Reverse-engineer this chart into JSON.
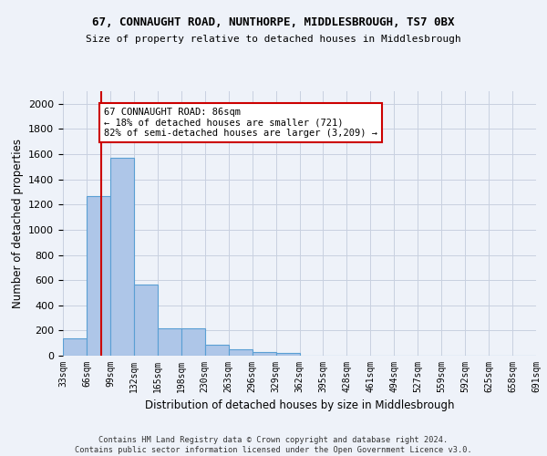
{
  "title": "67, CONNAUGHT ROAD, NUNTHORPE, MIDDLESBROUGH, TS7 0BX",
  "subtitle": "Size of property relative to detached houses in Middlesbrough",
  "xlabel": "Distribution of detached houses by size in Middlesbrough",
  "ylabel": "Number of detached properties",
  "bar_values": [
    140,
    1265,
    1570,
    565,
    220,
    220,
    90,
    50,
    30,
    20,
    0,
    0,
    0,
    0,
    0,
    0,
    0,
    0,
    0,
    0
  ],
  "bar_edges": [
    33,
    66,
    99,
    132,
    165,
    198,
    231,
    264,
    297,
    330,
    363,
    396,
    429,
    462,
    495,
    528,
    561,
    594,
    627,
    660,
    693
  ],
  "tick_labels": [
    "33sqm",
    "66sqm",
    "99sqm",
    "132sqm",
    "165sqm",
    "198sqm",
    "230sqm",
    "263sqm",
    "296sqm",
    "329sqm",
    "362sqm",
    "395sqm",
    "428sqm",
    "461sqm",
    "494sqm",
    "527sqm",
    "559sqm",
    "592sqm",
    "625sqm",
    "658sqm",
    "691sqm"
  ],
  "bar_color": "#aec6e8",
  "bar_edgecolor": "#5a9fd4",
  "vline_x": 86,
  "vline_color": "#cc0000",
  "ylim": [
    0,
    2100
  ],
  "yticks": [
    0,
    200,
    400,
    600,
    800,
    1000,
    1200,
    1400,
    1600,
    1800,
    2000
  ],
  "annotation_text": "67 CONNAUGHT ROAD: 86sqm\n← 18% of detached houses are smaller (721)\n82% of semi-detached houses are larger (3,209) →",
  "annotation_box_color": "#ffffff",
  "annotation_box_edgecolor": "#cc0000",
  "footer_text": "Contains HM Land Registry data © Crown copyright and database right 2024.\nContains public sector information licensed under the Open Government Licence v3.0.",
  "background_color": "#eef2f9",
  "grid_color": "#c8d0e0"
}
